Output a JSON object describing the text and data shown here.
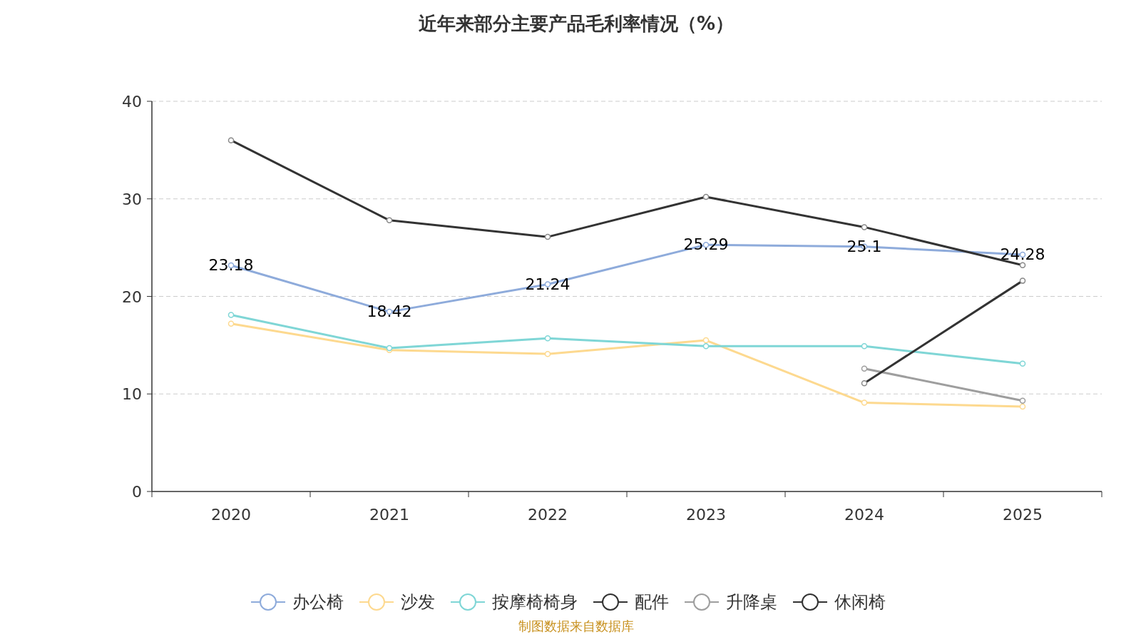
{
  "chart_data": {
    "type": "line",
    "title": "近年来部分主要产品毛利率情况（%）",
    "categories": [
      "2020",
      "2021",
      "2022",
      "2023",
      "2024",
      "2025"
    ],
    "ylim": [
      0,
      40
    ],
    "yticks": [
      0,
      10,
      20,
      30,
      40
    ],
    "grid": "y",
    "legend": "bottom",
    "marker": "circle",
    "annotations": [
      "制图数据来自数据库"
    ],
    "series": [
      {
        "name": "办公椅",
        "color": "#8eabdb",
        "values": [
          23.18,
          18.42,
          21.24,
          25.29,
          25.1,
          24.28
        ],
        "value_labels": [
          "23.18",
          "18.42",
          "21.24",
          "25.29",
          "25.1",
          "24.28"
        ]
      },
      {
        "name": "沙发",
        "color": "#fdd98f",
        "values": [
          17.2,
          14.5,
          14.1,
          15.5,
          9.1,
          8.7
        ]
      },
      {
        "name": "按摩椅椅身",
        "color": "#7fd6d6",
        "values": [
          18.1,
          14.7,
          15.7,
          14.9,
          14.9,
          13.1
        ]
      },
      {
        "name": "配件",
        "color": "#333333",
        "values": [
          36.0,
          27.8,
          26.1,
          30.2,
          27.1,
          23.2
        ]
      },
      {
        "name": "升降桌",
        "color": "#9e9e9e",
        "values": [
          null,
          null,
          null,
          null,
          12.6,
          9.3
        ]
      },
      {
        "name": "休闲椅",
        "color": "#333333",
        "values": [
          null,
          null,
          null,
          null,
          11.1,
          21.6
        ]
      }
    ]
  }
}
